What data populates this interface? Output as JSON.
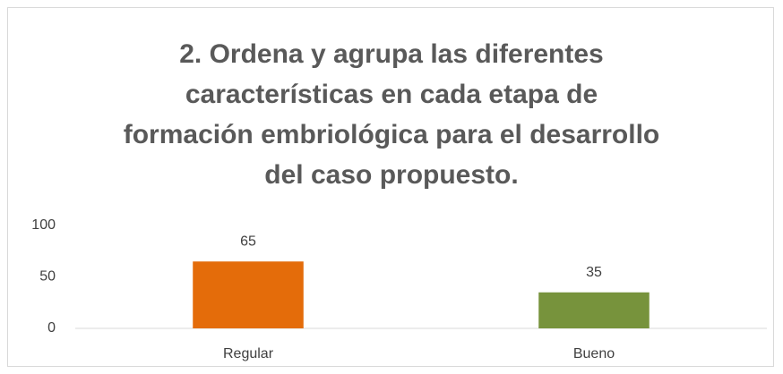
{
  "chart_data": {
    "type": "bar",
    "title": "2. Ordena y agrupa las diferentes características en cada etapa de formación embriológica para el desarrollo del caso propuesto.",
    "categories": [
      "Regular",
      "Bueno"
    ],
    "values": [
      65,
      35
    ],
    "colors": [
      "#e46c0a",
      "#77933c"
    ],
    "ylim": [
      0,
      100
    ],
    "yticks": [
      0,
      50,
      100
    ],
    "grid": false
  }
}
